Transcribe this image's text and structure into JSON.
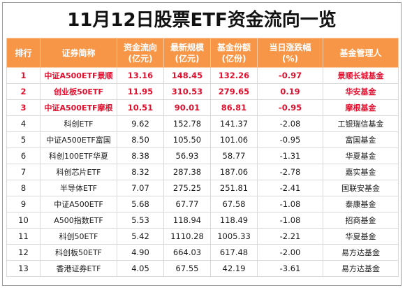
{
  "title": "11月12日股票ETF资金流向一览",
  "headers": [
    {
      "line1": "排行",
      "line2": ""
    },
    {
      "line1": "证券简称",
      "line2": ""
    },
    {
      "line1": "资金流向",
      "line2": "(亿元)"
    },
    {
      "line1": "最新规模",
      "line2": "(亿元)"
    },
    {
      "line1": "基金份额",
      "line2": "(亿份)"
    },
    {
      "line1": "当日涨跌幅",
      "line2": "(%)"
    },
    {
      "line1": "基金管理人",
      "line2": ""
    }
  ],
  "rows": [
    {
      "rank": "1",
      "name": "中证A500ETF景顺",
      "flow": "13.16",
      "scale": "148.45",
      "shares": "132.26",
      "change": "-0.97",
      "manager": "景顺长城基金"
    },
    {
      "rank": "2",
      "name": "创业板50ETF",
      "flow": "11.95",
      "scale": "310.53",
      "shares": "279.65",
      "change": "0.19",
      "manager": "华安基金"
    },
    {
      "rank": "3",
      "name": "中证A500ETF摩根",
      "flow": "10.51",
      "scale": "90.01",
      "shares": "86.81",
      "change": "-0.95",
      "manager": "摩根基金"
    },
    {
      "rank": "4",
      "name": "科创ETF",
      "flow": "9.62",
      "scale": "152.78",
      "shares": "141.37",
      "change": "-2.08",
      "manager": "工银瑞信基金"
    },
    {
      "rank": "5",
      "name": "中证A500ETF富国",
      "flow": "8.50",
      "scale": "105.50",
      "shares": "101.06",
      "change": "-0.95",
      "manager": "富国基金"
    },
    {
      "rank": "6",
      "name": "科创100ETF华夏",
      "flow": "8.38",
      "scale": "56.93",
      "shares": "58.77",
      "change": "-1.31",
      "manager": "华夏基金"
    },
    {
      "rank": "7",
      "name": "科创芯片ETF",
      "flow": "8.32",
      "scale": "287.38",
      "shares": "187.06",
      "change": "-2.78",
      "manager": "嘉实基金"
    },
    {
      "rank": "8",
      "name": "半导体ETF",
      "flow": "7.07",
      "scale": "275.25",
      "shares": "251.81",
      "change": "-2.41",
      "manager": "国联安基金"
    },
    {
      "rank": "9",
      "name": "中证A500ETF",
      "flow": "5.68",
      "scale": "67.77",
      "shares": "67.58",
      "change": "-1.08",
      "manager": "泰康基金"
    },
    {
      "rank": "10",
      "name": "A500指数ETF",
      "flow": "5.53",
      "scale": "118.94",
      "shares": "118.49",
      "change": "-1.08",
      "manager": "招商基金"
    },
    {
      "rank": "11",
      "name": "科创50ETF",
      "flow": "5.42",
      "scale": "1110.28",
      "shares": "1005.33",
      "change": "-2.21",
      "manager": "华夏基金"
    },
    {
      "rank": "12",
      "name": "科创板50ETF",
      "flow": "4.90",
      "scale": "664.03",
      "shares": "617.48",
      "change": "-2.00",
      "manager": "易方达基金"
    },
    {
      "rank": "13",
      "name": "香港证券ETF",
      "flow": "4.05",
      "scale": "67.55",
      "shares": "42.19",
      "change": "-3.61",
      "manager": "易方达基金"
    }
  ],
  "colors": {
    "header_bg": "#f79646",
    "header_text": "#ffffff",
    "highlight_text": "#e1102e"
  }
}
